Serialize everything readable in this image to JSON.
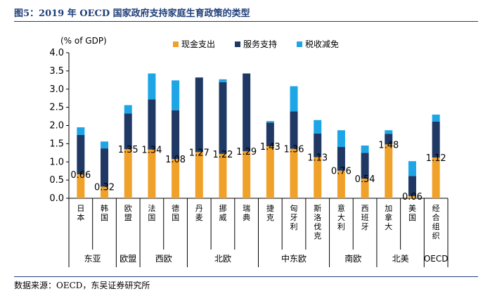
{
  "title": "图5：2019 年 OECD 国家政府支持家庭生育政策的类型",
  "source": "数据来源：OECD，东吴证券研究所",
  "colors": {
    "cash": "#f0a12a",
    "services": "#1f3864",
    "tax": "#1da5e6",
    "title": "#1f3f7a"
  },
  "chart_data": {
    "type": "bar",
    "stacked": true,
    "ylabel": "(% of GDP)",
    "ylim": [
      0,
      4.0
    ],
    "yticks": [
      "0.0",
      "0.5",
      "1.0",
      "1.5",
      "2.0",
      "2.5",
      "3.0",
      "3.5",
      "4.0"
    ],
    "legend_position": "top-center",
    "categories": [
      "日本",
      "韩国",
      "欧盟",
      "法国",
      "德国",
      "丹麦",
      "挪威",
      "瑞典",
      "捷克",
      "匈牙利",
      "斯洛伐克",
      "意大利",
      "西班牙",
      "加拿大",
      "美国",
      "经合组织"
    ],
    "series": [
      {
        "name": "现金支出",
        "color": "#f0a12a",
        "values": [
          0.66,
          0.32,
          1.35,
          1.34,
          1.08,
          1.27,
          1.22,
          1.29,
          1.43,
          1.36,
          1.13,
          0.76,
          0.54,
          1.48,
          0.06,
          1.12
        ]
      },
      {
        "name": "服务支持",
        "color": "#1f3864",
        "values": [
          1.08,
          1.05,
          0.98,
          1.38,
          1.34,
          2.05,
          1.97,
          2.14,
          0.65,
          1.03,
          0.65,
          0.65,
          0.71,
          0.29,
          0.55,
          0.99
        ]
      },
      {
        "name": "税收减免",
        "color": "#1da5e6",
        "values": [
          0.21,
          0.19,
          0.23,
          0.71,
          0.82,
          0.0,
          0.08,
          0.0,
          0.04,
          0.69,
          0.37,
          0.46,
          0.2,
          0.1,
          0.41,
          0.19
        ]
      }
    ],
    "data_labels": [
      "0.66",
      "0.32",
      "1.35",
      "1.34",
      "1.08",
      "1.27",
      "1.22",
      "1.29",
      "1.43",
      "1.36",
      "1.13",
      "0.76",
      "0.54",
      "1.48",
      "0.06",
      "1.12"
    ],
    "groups": [
      {
        "label": "东亚",
        "count": 2
      },
      {
        "label": "欧盟",
        "count": 1
      },
      {
        "label": "西欧",
        "count": 2
      },
      {
        "label": "北欧",
        "count": 3
      },
      {
        "label": "中东欧",
        "count": 3
      },
      {
        "label": "南欧",
        "count": 2
      },
      {
        "label": "北美",
        "count": 2
      },
      {
        "label": "OECD",
        "count": 1
      }
    ]
  }
}
